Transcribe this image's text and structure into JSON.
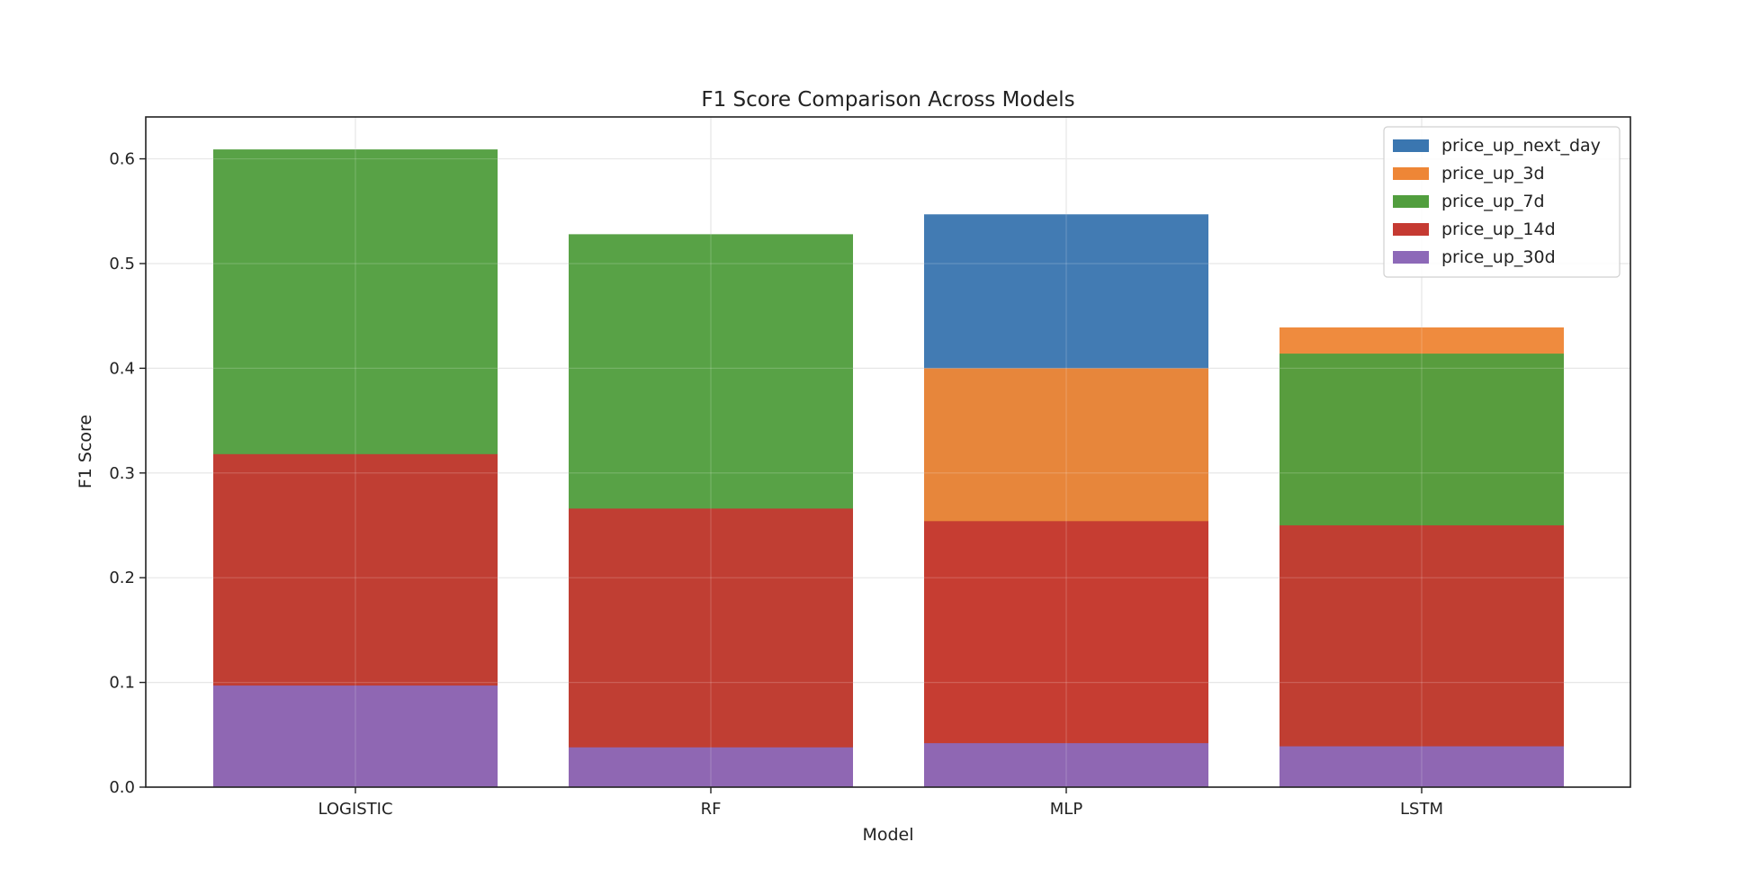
{
  "chart_data": {
    "type": "bar",
    "stacked": false,
    "overlay": "bars drawn on top of each other, last series in front",
    "title": "F1 Score Comparison Across Models",
    "xlabel": "Model",
    "ylabel": "F1 Score",
    "categories": [
      "LOGISTIC",
      "RF",
      "MLP",
      "LSTM"
    ],
    "ylim": [
      0,
      0.64
    ],
    "yticks": [
      "0.0",
      "0.1",
      "0.2",
      "0.3",
      "0.4",
      "0.5",
      "0.6"
    ],
    "grid": true,
    "legend_position": "top-right",
    "series": [
      {
        "name": "price_up_next_day",
        "color": "#3a76b0",
        "values": [
          0.0,
          0.0,
          0.547,
          0.0
        ]
      },
      {
        "name": "price_up_3d",
        "color": "#ee8636",
        "values": [
          0.0,
          0.0,
          0.4,
          0.439
        ]
      },
      {
        "name": "price_up_7d",
        "color": "#519e3e",
        "values": [
          0.609,
          0.528,
          0.0,
          0.414
        ]
      },
      {
        "name": "price_up_14d",
        "color": "#c53a32",
        "values": [
          0.318,
          0.266,
          0.254,
          0.25
        ]
      },
      {
        "name": "price_up_30d",
        "color": "#8d69b8",
        "values": [
          0.097,
          0.038,
          0.042,
          0.039
        ]
      }
    ]
  }
}
